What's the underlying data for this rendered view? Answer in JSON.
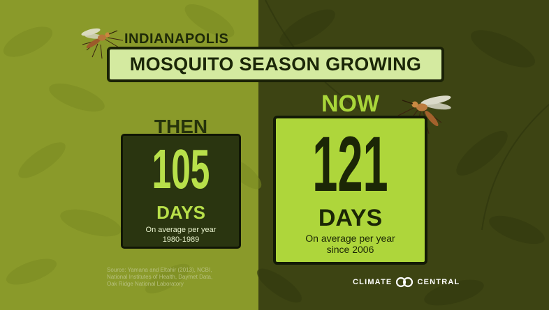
{
  "header": {
    "city": "INDIANAPOLIS",
    "title": "MOSQUITO SEASON GROWING"
  },
  "then": {
    "label": "THEN",
    "value": "105",
    "unit": "DAYS",
    "line1": "On average per year",
    "line2": "1980-1989"
  },
  "now": {
    "label": "NOW",
    "value": "121",
    "unit": "DAYS",
    "line1": "On average per year",
    "line2": "since 2006"
  },
  "source": {
    "line1": "Source: Yamana and Eltahir (2013), NCBI,",
    "line2": "National Institutes of Health, Daymet Data,",
    "line3": "Oak Ridge National Laboratory"
  },
  "brand": {
    "left": "CLIMATE",
    "right": "CENTRAL"
  },
  "colors": {
    "left_bg": "#8a9a2a",
    "right_bg": "#3d4413",
    "title_box": "#d4eaa0",
    "then_box": "#2a3510",
    "then_text": "#b8e04a",
    "now_box": "#aed63b",
    "now_text": "#1b2606"
  },
  "icons": [
    "mosquito-icon",
    "climate-central-logo-icon"
  ]
}
